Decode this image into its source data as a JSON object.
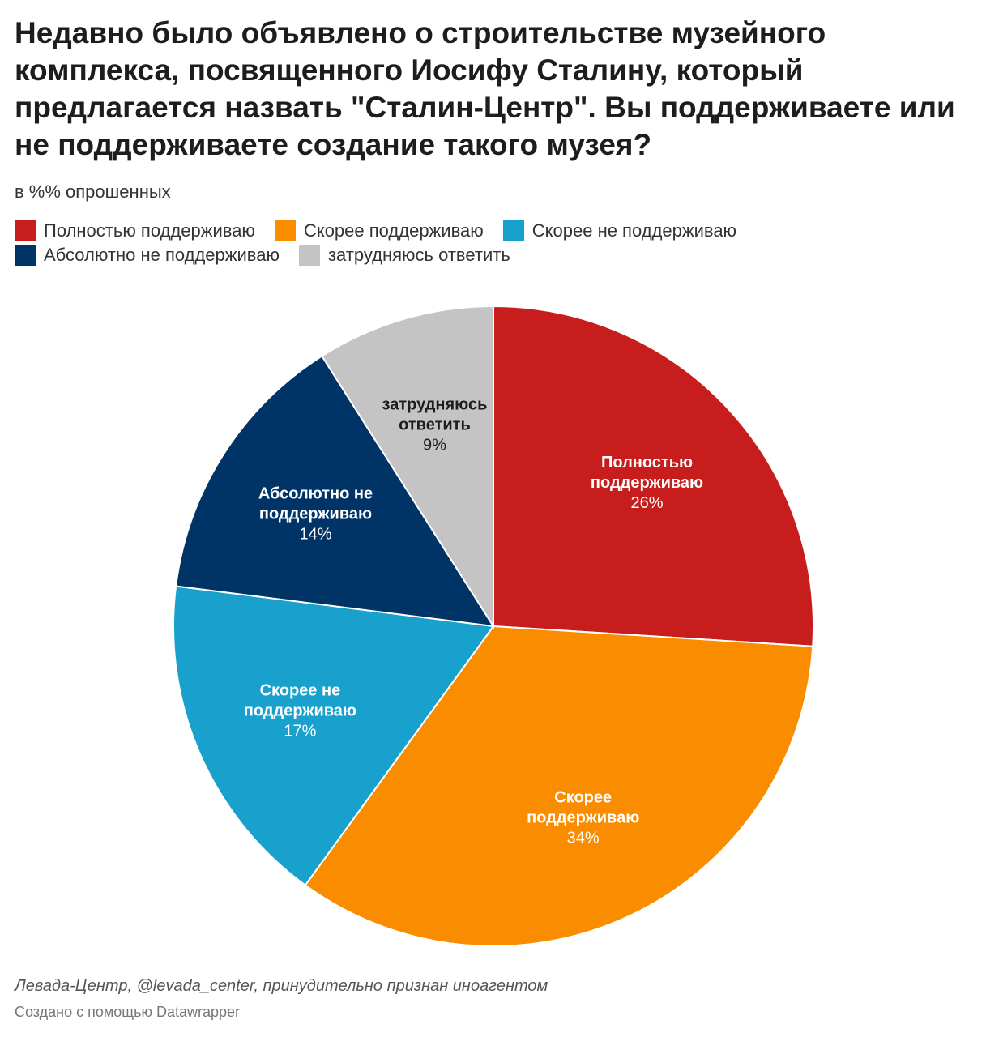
{
  "title": "Недавно было объявлено о строительстве музейного комплекса, посвященного Иосифу Сталину, который предлагается назвать \"Сталин-Центр\". Вы поддерживаете или не поддерживаете создание такого музея?",
  "subtitle": "в %% опрошенных",
  "footer": {
    "source": "Левада-Центр, @levada_center, принудительно признан иноагентом",
    "credit": "Создано с помощью Datawrapper"
  },
  "chart_data": {
    "type": "pie",
    "title": "Недавно было объявлено о строительстве музейного комплекса, посвященного Иосифу Сталину, который предлагается назвать \"Сталин-Центр\". Вы поддерживаете или не поддерживаете создание такого музея?",
    "subtitle": "в %% опрошенных",
    "legend_position": "top-left",
    "unit": "%",
    "slices": [
      {
        "label": "Полностью поддерживаю",
        "value": 26,
        "value_label": "26%",
        "slice_label_lines": [
          "Полностью",
          "поддерживаю"
        ],
        "color": "#c71e1d",
        "label_color": "#ffffff"
      },
      {
        "label": "Скорее поддерживаю",
        "value": 34,
        "value_label": "34%",
        "slice_label_lines": [
          "Скорее",
          "поддерживаю"
        ],
        "color": "#fa8c00",
        "label_color": "#ffffff"
      },
      {
        "label": "Скорее не поддерживаю",
        "value": 17,
        "value_label": "17%",
        "slice_label_lines": [
          "Скорее не",
          "поддерживаю"
        ],
        "color": "#18a1cd",
        "label_color": "#ffffff"
      },
      {
        "label": "Абсолютно не поддерживаю",
        "value": 14,
        "value_label": "14%",
        "slice_label_lines": [
          "Абсолютно не",
          "поддерживаю"
        ],
        "color": "#003366",
        "label_color": "#ffffff"
      },
      {
        "label": "затрудняюсь ответить",
        "value": 9,
        "value_label": "9%",
        "slice_label_lines": [
          "затрудняюсь",
          "ответить"
        ],
        "color": "#c4c4c4",
        "label_color": "#1d1d1d"
      }
    ]
  }
}
